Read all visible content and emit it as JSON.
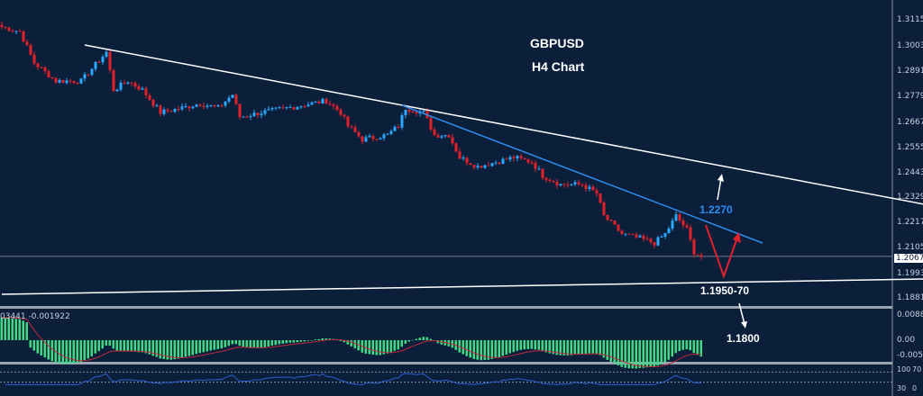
{
  "header": {
    "symbol": "GBPUSD",
    "timeframe": "H4 Chart"
  },
  "colors": {
    "background": "#0b1f3a",
    "bull_candle": "#2aa8ff",
    "bear_candle": "#e0202a",
    "trendline_main": "#ffffff",
    "trendline_short": "#2f8cf0",
    "macd_hist": "#3ddc84",
    "macd_signal": "#c0283a",
    "rsi": "#2f5fd0"
  },
  "annotations": {
    "resistance_label": "1.2270",
    "support_label": "1.1950-70",
    "target_label": "1.1800"
  },
  "price_axis": {
    "ticks": [
      "1.31150",
      "1.30030",
      "1.28910",
      "1.27790",
      "1.26670",
      "1.25550",
      "1.24430",
      "1.23290",
      "1.22170",
      "1.21050",
      "1.19930",
      "1.18810"
    ],
    "current_price": "1.20673"
  },
  "macd_panel": {
    "values_label": "03441 -0.001922",
    "ticks": [
      "0.008839",
      "0.00",
      "-0.00531"
    ]
  },
  "rsi_panel": {
    "ticks": [
      "100",
      "70",
      "30",
      "0"
    ],
    "levels": [
      70,
      30
    ]
  },
  "chart_data": {
    "type": "candlestick",
    "title": "GBPUSD H4 Chart",
    "ylim": [
      1.1845,
      1.3175
    ],
    "close_path": [
      [
        0,
        1.3087
      ],
      [
        5,
        1.3067
      ],
      [
        9,
        1.2927
      ],
      [
        15,
        1.2847
      ],
      [
        22,
        1.2847
      ],
      [
        29,
        1.2975
      ],
      [
        31,
        1.2807
      ],
      [
        35,
        1.2847
      ],
      [
        39,
        1.2807
      ],
      [
        44,
        1.2707
      ],
      [
        50,
        1.2727
      ],
      [
        55,
        1.2747
      ],
      [
        60,
        1.2727
      ],
      [
        64,
        1.2787
      ],
      [
        66,
        1.2687
      ],
      [
        72,
        1.2707
      ],
      [
        82,
        1.2735
      ],
      [
        90,
        1.2759
      ],
      [
        94,
        1.2707
      ],
      [
        96,
        1.2647
      ],
      [
        100,
        1.2587
      ],
      [
        107,
        1.2607
      ],
      [
        110,
        1.2647
      ],
      [
        112,
        1.2727
      ],
      [
        117,
        1.2707
      ],
      [
        120,
        1.2607
      ],
      [
        124,
        1.2607
      ],
      [
        127,
        1.2507
      ],
      [
        132,
        1.2467
      ],
      [
        137,
        1.2487
      ],
      [
        142,
        1.2507
      ],
      [
        147,
        1.2487
      ],
      [
        150,
        1.2427
      ],
      [
        155,
        1.2387
      ],
      [
        161,
        1.2387
      ],
      [
        165,
        1.2347
      ],
      [
        167,
        1.2247
      ],
      [
        172,
        1.2167
      ],
      [
        177,
        1.2147
      ],
      [
        181,
        1.2127
      ],
      [
        184,
        1.2167
      ],
      [
        187,
        1.2247
      ],
      [
        190,
        1.2187
      ],
      [
        192,
        1.2087
      ],
      [
        194,
        1.2067
      ]
    ],
    "trendlines": [
      {
        "kind": "upper-channel",
        "from": [
          23,
          1.3007
        ],
        "to": [
          256,
          1.23
        ]
      },
      {
        "kind": "short-term-resistance",
        "from": [
          111,
          1.2739
        ],
        "to": [
          211,
          1.2127
        ]
      },
      {
        "kind": "lower-channel",
        "from": [
          0,
          1.1899
        ],
        "to": [
          256,
          1.1967
        ]
      }
    ]
  }
}
